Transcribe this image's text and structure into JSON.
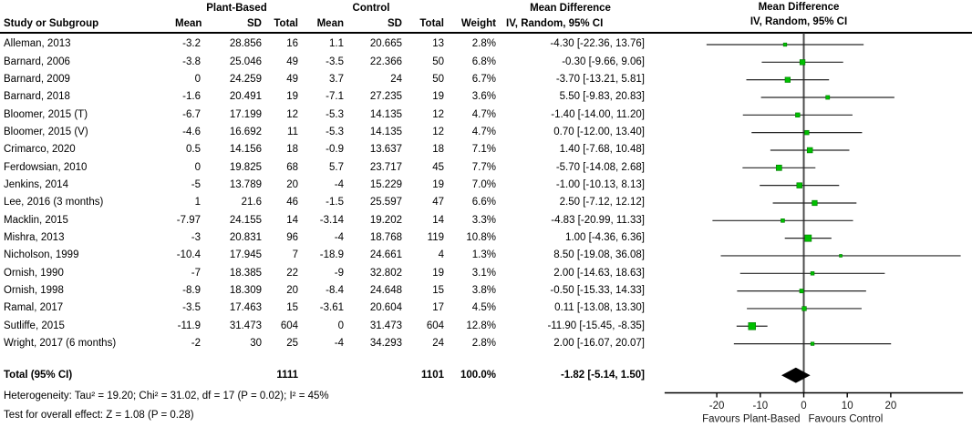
{
  "table": {
    "header": {
      "study_col": "Study or Subgroup",
      "group1": "Plant-Based",
      "group2": "Control",
      "mean": "Mean",
      "sd": "SD",
      "total": "Total",
      "weight": "Weight",
      "md_line1": "Mean Difference",
      "md_line2": "IV, Random, 95% CI"
    },
    "rows": [
      {
        "study": "Alleman, 2013",
        "mean1": "-3.2",
        "sd1": "28.856",
        "n1": "16",
        "mean2": "1.1",
        "sd2": "20.665",
        "n2": "13",
        "weight": "2.8%",
        "ci": "-4.30 [-22.36, 13.76]"
      },
      {
        "study": "Barnard, 2006",
        "mean1": "-3.8",
        "sd1": "25.046",
        "n1": "49",
        "mean2": "-3.5",
        "sd2": "22.366",
        "n2": "50",
        "weight": "6.8%",
        "ci": "-0.30 [-9.66, 9.06]"
      },
      {
        "study": "Barnard, 2009",
        "mean1": "0",
        "sd1": "24.259",
        "n1": "49",
        "mean2": "3.7",
        "sd2": "24",
        "n2": "50",
        "weight": "6.7%",
        "ci": "-3.70 [-13.21, 5.81]"
      },
      {
        "study": "Barnard, 2018",
        "mean1": "-1.6",
        "sd1": "20.491",
        "n1": "19",
        "mean2": "-7.1",
        "sd2": "27.235",
        "n2": "19",
        "weight": "3.6%",
        "ci": "5.50 [-9.83, 20.83]"
      },
      {
        "study": "Bloomer, 2015 (T)",
        "mean1": "-6.7",
        "sd1": "17.199",
        "n1": "12",
        "mean2": "-5.3",
        "sd2": "14.135",
        "n2": "12",
        "weight": "4.7%",
        "ci": "-1.40 [-14.00, 11.20]"
      },
      {
        "study": "Bloomer, 2015 (V)",
        "mean1": "-4.6",
        "sd1": "16.692",
        "n1": "11",
        "mean2": "-5.3",
        "sd2": "14.135",
        "n2": "12",
        "weight": "4.7%",
        "ci": "0.70 [-12.00, 13.40]"
      },
      {
        "study": "Crimarco, 2020",
        "mean1": "0.5",
        "sd1": "14.156",
        "n1": "18",
        "mean2": "-0.9",
        "sd2": "13.637",
        "n2": "18",
        "weight": "7.1%",
        "ci": "1.40 [-7.68, 10.48]"
      },
      {
        "study": "Ferdowsian, 2010",
        "mean1": "0",
        "sd1": "19.825",
        "n1": "68",
        "mean2": "5.7",
        "sd2": "23.717",
        "n2": "45",
        "weight": "7.7%",
        "ci": "-5.70 [-14.08, 2.68]"
      },
      {
        "study": "Jenkins, 2014",
        "mean1": "-5",
        "sd1": "13.789",
        "n1": "20",
        "mean2": "-4",
        "sd2": "15.229",
        "n2": "19",
        "weight": "7.0%",
        "ci": "-1.00 [-10.13, 8.13]"
      },
      {
        "study": "Lee, 2016 (3 months)",
        "mean1": "1",
        "sd1": "21.6",
        "n1": "46",
        "mean2": "-1.5",
        "sd2": "25.597",
        "n2": "47",
        "weight": "6.6%",
        "ci": "2.50 [-7.12, 12.12]"
      },
      {
        "study": "Macklin, 2015",
        "mean1": "-7.97",
        "sd1": "24.155",
        "n1": "14",
        "mean2": "-3.14",
        "sd2": "19.202",
        "n2": "14",
        "weight": "3.3%",
        "ci": "-4.83 [-20.99, 11.33]"
      },
      {
        "study": "Mishra, 2013",
        "mean1": "-3",
        "sd1": "20.831",
        "n1": "96",
        "mean2": "-4",
        "sd2": "18.768",
        "n2": "119",
        "weight": "10.8%",
        "ci": "1.00 [-4.36, 6.36]"
      },
      {
        "study": "Nicholson, 1999",
        "mean1": "-10.4",
        "sd1": "17.945",
        "n1": "7",
        "mean2": "-18.9",
        "sd2": "24.661",
        "n2": "4",
        "weight": "1.3%",
        "ci": "8.50 [-19.08, 36.08]"
      },
      {
        "study": "Ornish, 1990",
        "mean1": "-7",
        "sd1": "18.385",
        "n1": "22",
        "mean2": "-9",
        "sd2": "32.802",
        "n2": "19",
        "weight": "3.1%",
        "ci": "2.00 [-14.63, 18.63]"
      },
      {
        "study": "Ornish, 1998",
        "mean1": "-8.9",
        "sd1": "18.309",
        "n1": "20",
        "mean2": "-8.4",
        "sd2": "24.648",
        "n2": "15",
        "weight": "3.8%",
        "ci": "-0.50 [-15.33, 14.33]"
      },
      {
        "study": "Ramal, 2017",
        "mean1": "-3.5",
        "sd1": "17.463",
        "n1": "15",
        "mean2": "-3.61",
        "sd2": "20.604",
        "n2": "17",
        "weight": "4.5%",
        "ci": "0.11 [-13.08, 13.30]"
      },
      {
        "study": "Sutliffe, 2015",
        "mean1": "-11.9",
        "sd1": "31.473",
        "n1": "604",
        "mean2": "0",
        "sd2": "31.473",
        "n2": "604",
        "weight": "12.8%",
        "ci": "-11.90 [-15.45, -8.35]"
      },
      {
        "study": "Wright, 2017 (6 months)",
        "mean1": "-2",
        "sd1": "30",
        "n1": "25",
        "mean2": "-4",
        "sd2": "34.293",
        "n2": "24",
        "weight": "2.8%",
        "ci": "2.00 [-16.07, 20.07]"
      }
    ],
    "total_row": {
      "label": "Total (95% CI)",
      "n1": "1111",
      "n2": "1101",
      "weight": "100.0%",
      "ci": "-1.82 [-5.14, 1.50]"
    },
    "heterogeneity": "Heterogeneity: Tau² = 19.20; Chi² = 31.02, df = 17 (P = 0.02); I² = 45%",
    "overall_effect": "Test for overall effect: Z = 1.08 (P = 0.28)"
  },
  "plot_header": {
    "line1": "Mean Difference",
    "line2": "IV, Random, 95% CI"
  },
  "chart_data": {
    "type": "scatter",
    "subtype": "forest-plot",
    "effect_measure": "Mean Difference",
    "model": "IV, Random, 95% CI",
    "studies": [
      {
        "name": "Alleman, 2013",
        "md": -4.3,
        "ci_low": -22.36,
        "ci_high": 13.76,
        "weight_pct": 2.8
      },
      {
        "name": "Barnard, 2006",
        "md": -0.3,
        "ci_low": -9.66,
        "ci_high": 9.06,
        "weight_pct": 6.8
      },
      {
        "name": "Barnard, 2009",
        "md": -3.7,
        "ci_low": -13.21,
        "ci_high": 5.81,
        "weight_pct": 6.7
      },
      {
        "name": "Barnard, 2018",
        "md": 5.5,
        "ci_low": -9.83,
        "ci_high": 20.83,
        "weight_pct": 3.6
      },
      {
        "name": "Bloomer, 2015 (T)",
        "md": -1.4,
        "ci_low": -14.0,
        "ci_high": 11.2,
        "weight_pct": 4.7
      },
      {
        "name": "Bloomer, 2015 (V)",
        "md": 0.7,
        "ci_low": -12.0,
        "ci_high": 13.4,
        "weight_pct": 4.7
      },
      {
        "name": "Crimarco, 2020",
        "md": 1.4,
        "ci_low": -7.68,
        "ci_high": 10.48,
        "weight_pct": 7.1
      },
      {
        "name": "Ferdowsian, 2010",
        "md": -5.7,
        "ci_low": -14.08,
        "ci_high": 2.68,
        "weight_pct": 7.7
      },
      {
        "name": "Jenkins, 2014",
        "md": -1.0,
        "ci_low": -10.13,
        "ci_high": 8.13,
        "weight_pct": 7.0
      },
      {
        "name": "Lee, 2016 (3 months)",
        "md": 2.5,
        "ci_low": -7.12,
        "ci_high": 12.12,
        "weight_pct": 6.6
      },
      {
        "name": "Macklin, 2015",
        "md": -4.83,
        "ci_low": -20.99,
        "ci_high": 11.33,
        "weight_pct": 3.3
      },
      {
        "name": "Mishra, 2013",
        "md": 1.0,
        "ci_low": -4.36,
        "ci_high": 6.36,
        "weight_pct": 10.8
      },
      {
        "name": "Nicholson, 1999",
        "md": 8.5,
        "ci_low": -19.08,
        "ci_high": 36.08,
        "weight_pct": 1.3
      },
      {
        "name": "Ornish, 1990",
        "md": 2.0,
        "ci_low": -14.63,
        "ci_high": 18.63,
        "weight_pct": 3.1
      },
      {
        "name": "Ornish, 1998",
        "md": -0.5,
        "ci_low": -15.33,
        "ci_high": 14.33,
        "weight_pct": 3.8
      },
      {
        "name": "Ramal, 2017",
        "md": 0.11,
        "ci_low": -13.08,
        "ci_high": 13.3,
        "weight_pct": 4.5
      },
      {
        "name": "Sutliffe, 2015",
        "md": -11.9,
        "ci_low": -15.45,
        "ci_high": -8.35,
        "weight_pct": 12.8
      },
      {
        "name": "Wright, 2017 (6 months)",
        "md": 2.0,
        "ci_low": -16.07,
        "ci_high": 20.07,
        "weight_pct": 2.8
      }
    ],
    "total": {
      "name": "Total (95% CI)",
      "md": -1.82,
      "ci_low": -5.14,
      "ci_high": 1.5,
      "weight_pct": 100.0
    },
    "x_ticks": [
      -20,
      -10,
      0,
      10,
      20
    ],
    "xlim": [
      -32,
      36.6
    ],
    "zero_line_x": 0,
    "x_axis_left_label": "Favours Plant-Based",
    "x_axis_right_label": "Favours Control",
    "grid": false,
    "marker_color": "#00c000",
    "marker_border_color": "#007a00",
    "ci_line_color": "#262626",
    "zero_line_color": "#4d4d4d",
    "axis_color": "#000000",
    "diamond_color": "#000000"
  }
}
